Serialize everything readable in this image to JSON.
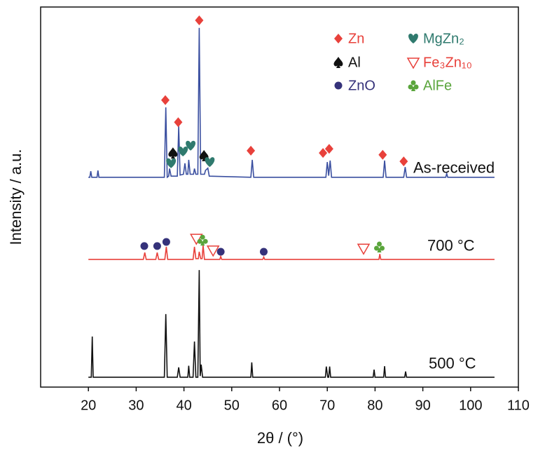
{
  "chart_data": {
    "type": "line",
    "xlabel": "2θ / (°)",
    "ylabel": "Intensity / a.u.",
    "xlim": [
      10,
      110
    ],
    "ylim": [
      0,
      100
    ],
    "xticks": [
      20,
      30,
      40,
      50,
      60,
      70,
      80,
      90,
      100,
      110
    ],
    "series": [
      {
        "name": "As-received",
        "color": "#3a4fa0",
        "x": [
          20,
          20.3,
          20.5,
          20.7,
          21.8,
          22,
          22.2,
          35.9,
          36.2,
          36.5,
          36.8,
          37,
          37.3,
          38.6,
          38.9,
          39.2,
          39.9,
          40.2,
          40.5,
          40.8,
          41.0,
          41.3,
          42,
          42.2,
          42.5,
          42.9,
          43.2,
          43.5,
          44.3,
          44.5,
          45,
          45.3,
          54,
          54.3,
          54.6,
          69.7,
          70,
          70.3,
          70.6,
          70.9,
          81.7,
          82,
          82.3,
          86,
          86.3,
          86.6,
          94.8,
          95,
          95.2,
          105
        ],
        "values": [
          55.2,
          55.2,
          56.8,
          55.2,
          55.2,
          57,
          55.2,
          55.2,
          73.6,
          55.2,
          55.5,
          57.5,
          55.5,
          55.5,
          68.6,
          55.8,
          56,
          58.9,
          56,
          56,
          59.8,
          56,
          56,
          57.5,
          56,
          56,
          94.5,
          56,
          56,
          57,
          57.6,
          55.5,
          55.2,
          59.8,
          55.2,
          55.2,
          59.2,
          55.6,
          59.6,
          55.2,
          55.2,
          59.6,
          55.2,
          55.2,
          57.9,
          55.2,
          55.2,
          56.2,
          55.2,
          55.2
        ]
      },
      {
        "name": "700 °C",
        "color": "#e8413b",
        "x": [
          20,
          31.5,
          31.8,
          32.1,
          34.1,
          34.4,
          34.7,
          36,
          36.3,
          36.6,
          41.9,
          42.2,
          42.5,
          43,
          43.2,
          43.5,
          43.8,
          44,
          44.3,
          47.5,
          47.7,
          47.9,
          56.5,
          56.7,
          56.9,
          80.8,
          81,
          81.2,
          105
        ],
        "values": [
          33.6,
          33.6,
          35.4,
          33.6,
          33.6,
          35.4,
          33.6,
          33.6,
          36.9,
          33.6,
          33.6,
          36.9,
          33.8,
          33.8,
          35.6,
          33.8,
          33.8,
          37.3,
          33.6,
          33.6,
          34.4,
          33.6,
          33.6,
          34.2,
          33.6,
          33.6,
          35,
          33.6,
          33.6
        ]
      },
      {
        "name": "500 °C",
        "color": "#111111",
        "x": [
          20,
          20.6,
          20.8,
          21,
          35.9,
          36.2,
          36.5,
          38.6,
          38.9,
          39.2,
          40.8,
          41,
          41.2,
          41.9,
          42.2,
          42.5,
          42.9,
          43.2,
          43.4,
          43.6,
          43.9,
          54,
          54.2,
          54.4,
          69.6,
          69.8,
          70.1,
          70.3,
          70.5,
          70.7,
          79.6,
          79.8,
          80,
          81.8,
          82,
          82.2,
          86.2,
          86.4,
          86.6,
          105
        ],
        "values": [
          2.6,
          2.6,
          13.3,
          2.6,
          2.6,
          19.2,
          2.6,
          2.6,
          5.2,
          2.6,
          2.6,
          5.6,
          2.6,
          2.6,
          12,
          2.6,
          2.6,
          30.8,
          2.9,
          5.9,
          2.6,
          2.6,
          6.5,
          2.6,
          2.6,
          5.4,
          2.6,
          2.6,
          5.4,
          2.6,
          2.6,
          4.6,
          2.6,
          2.6,
          5.5,
          2.6,
          2.6,
          4.1,
          2.6,
          2.6
        ]
      }
    ],
    "phases": [
      {
        "name": "Zn",
        "color": "#e8413b",
        "symbol": "diamond",
        "x": [
          36.1,
          38.8,
          43.2,
          54.0,
          69.1,
          70.4,
          81.6,
          86.0
        ],
        "y": [
          75.5,
          69.7,
          96.5,
          62.2,
          61.6,
          62.7,
          61.1,
          59.4
        ]
      },
      {
        "name": "Al",
        "color": "#111111",
        "symbol": "spade",
        "x": [
          37.7,
          44.2
        ],
        "y": [
          61.6,
          60.9
        ]
      },
      {
        "name": "ZnO",
        "color": "#35327a",
        "symbol": "circle",
        "x": [
          31.7,
          34.4,
          36.3,
          47.7,
          56.7
        ],
        "y": [
          37.1,
          37.1,
          38.2,
          35.6,
          35.6
        ]
      },
      {
        "name": "MgZn₂",
        "color": "#2f7a6e",
        "symbol": "heart",
        "x": [
          37.3,
          39.8,
          41.4,
          45.4
        ],
        "y": [
          58.9,
          62,
          63.5,
          59.2
        ]
      },
      {
        "name": "Fe₃Zn₁₀",
        "color": "#e8413b",
        "symbol": "triangle",
        "x": [
          42.6,
          46.1,
          77.6
        ],
        "y": [
          39.1,
          36,
          36.5
        ]
      },
      {
        "name": "AlFe",
        "color": "#5aa53c",
        "symbol": "club",
        "x": [
          43.9,
          80.9
        ],
        "y": [
          38.7,
          36.9
        ]
      }
    ]
  }
}
